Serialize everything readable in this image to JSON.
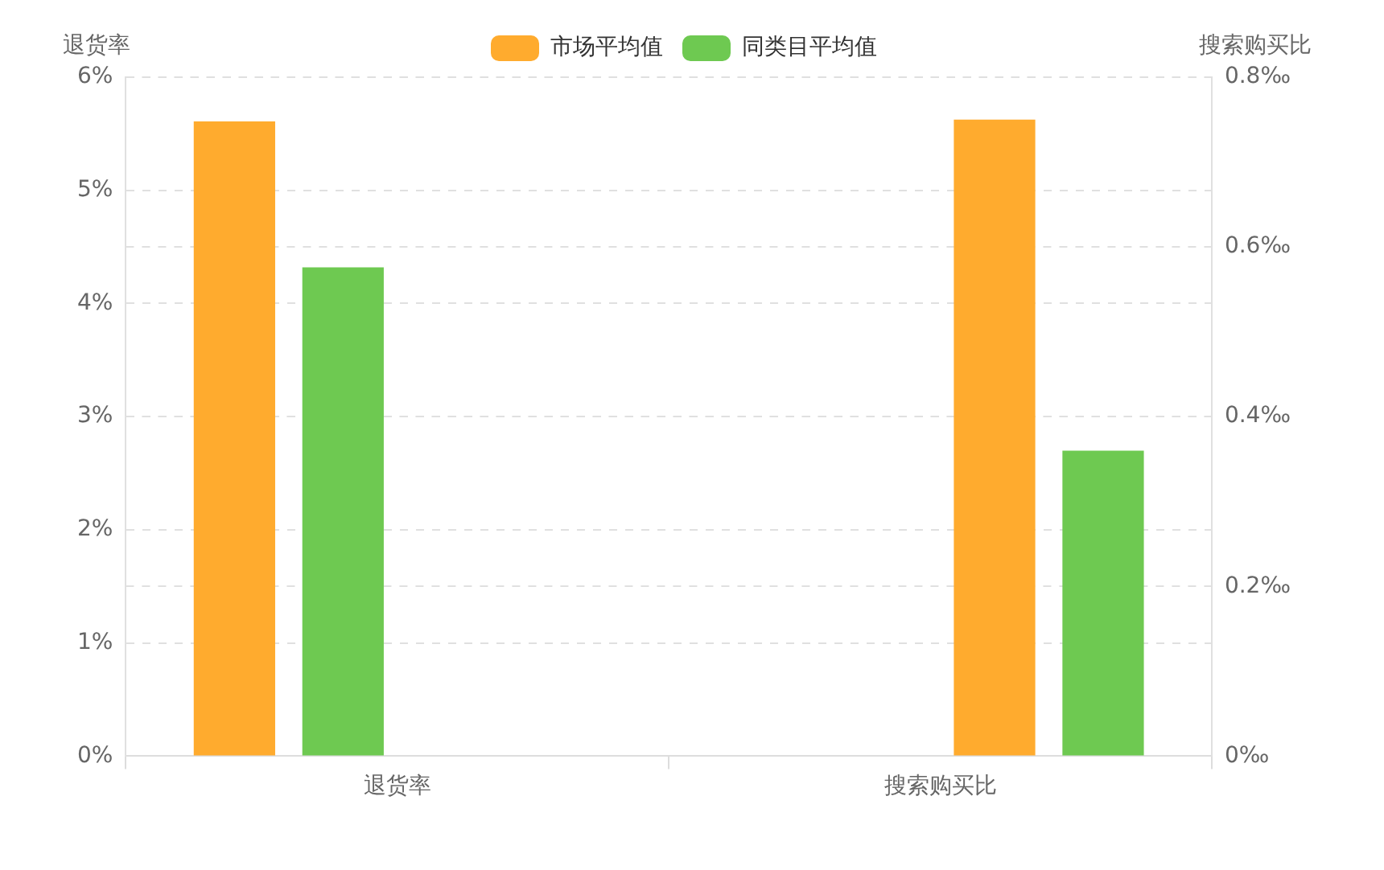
{
  "chart_data": {
    "type": "bar",
    "categories": [
      "退货率",
      "搜索购买比"
    ],
    "ylabel": "退货率",
    "y2label": "搜索购买比",
    "series": [
      {
        "name": "市场平均值",
        "color": "#ffab2e",
        "values": [
          5.61,
          null
        ]
      },
      {
        "name": "同类目平均值",
        "color": "#6ec951",
        "values": [
          4.32,
          null
        ]
      },
      {
        "color": "#ffab2e",
        "values": [
          null,
          0.75
        ],
        "axis": "y2"
      },
      {
        "color": "#6ec951",
        "values": [
          null,
          0.36
        ],
        "axis": "y2"
      }
    ],
    "ylim": [
      0,
      6
    ],
    "yticks": [
      {
        "value": 0,
        "label": "0%"
      },
      {
        "value": 1,
        "label": "1%"
      },
      {
        "value": 2,
        "label": "2%"
      },
      {
        "value": 3,
        "label": "3%"
      },
      {
        "value": 4,
        "label": "4%"
      },
      {
        "value": 5,
        "label": "5%"
      },
      {
        "value": 6,
        "label": "6%"
      }
    ],
    "y2lim": [
      0,
      0.8
    ],
    "y2ticks": [
      {
        "value": 0,
        "label": "0‰"
      },
      {
        "value": 0.2,
        "label": "0.2‰"
      },
      {
        "value": 0.4,
        "label": "0.4‰"
      },
      {
        "value": 0.6,
        "label": "0.6‰"
      },
      {
        "value": 0.8,
        "label": "0.8‰"
      }
    ],
    "grid": true,
    "legend": "top"
  }
}
